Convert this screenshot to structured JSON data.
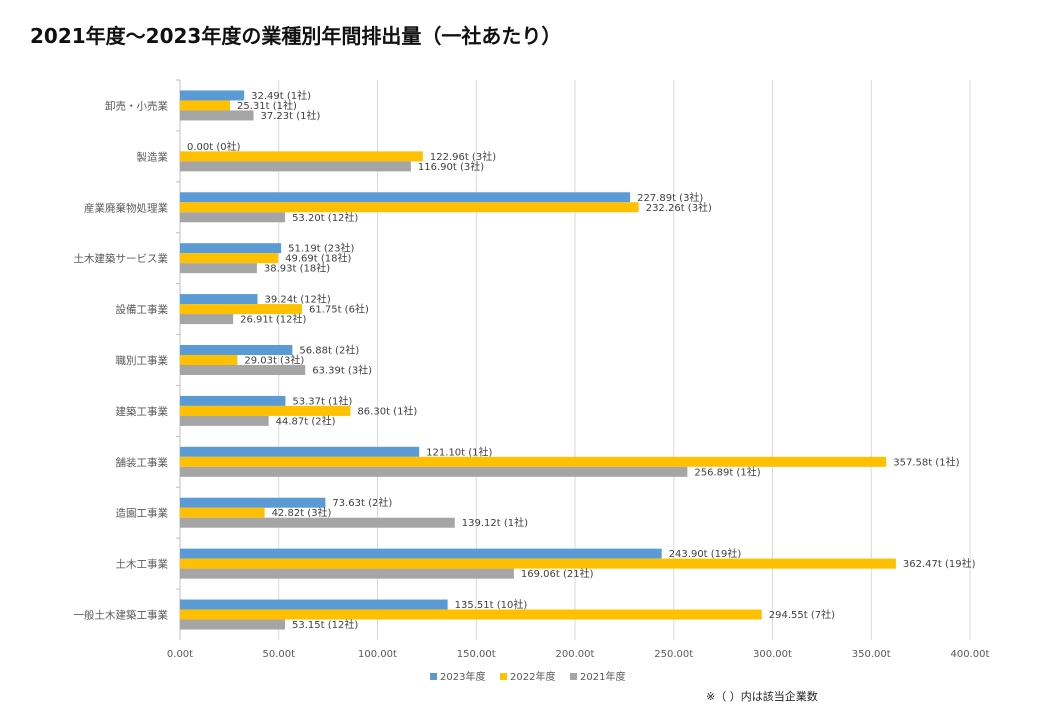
{
  "chart_data": {
    "type": "bar",
    "orientation": "horizontal",
    "title": "2021年度～2023年度の業種別年間排出量（一社あたり）",
    "categories": [
      "卸売・小売業",
      "製造業",
      "産業廃棄物処理業",
      "土木建築サービス業",
      "設備工事業",
      "職別工事業",
      "建築工事業",
      "舗装工事業",
      "造園工事業",
      "土木工事業",
      "一般土木建築工事業"
    ],
    "series": [
      {
        "name": "2023年度",
        "color": "#5b9bd5",
        "values": [
          32.49,
          0.0,
          227.89,
          51.19,
          39.24,
          56.88,
          53.37,
          121.1,
          73.63,
          243.9,
          135.51
        ],
        "labels": [
          "32.49t (1社)",
          "0.00t (0社)",
          "227.89t (3社)",
          "51.19t (23社)",
          "39.24t (12社)",
          "56.88t (2社)",
          "53.37t (1社)",
          "121.10t (1社)",
          "73.63t (2社)",
          "243.90t (19社)",
          "135.51t (10社)"
        ]
      },
      {
        "name": "2022年度",
        "color": "#ffc000",
        "values": [
          25.31,
          122.96,
          232.26,
          49.69,
          61.75,
          29.03,
          86.3,
          357.58,
          42.82,
          362.47,
          294.55
        ],
        "labels": [
          "25.31t (1社)",
          "122.96t (3社)",
          "232.26t (3社)",
          "49.69t (18社)",
          "61.75t (6社)",
          "29.03t (3社)",
          "86.30t (1社)",
          "357.58t (1社)",
          "42.82t (3社)",
          "362.47t (19社)",
          "294.55t (7社)"
        ]
      },
      {
        "name": "2021年度",
        "color": "#a5a5a5",
        "values": [
          37.23,
          116.9,
          53.2,
          38.93,
          26.91,
          63.39,
          44.87,
          256.89,
          139.12,
          169.06,
          53.15
        ],
        "labels": [
          "37.23t (1社)",
          "116.90t (3社)",
          "53.20t (12社)",
          "38.93t (18社)",
          "26.91t (12社)",
          "63.39t (3社)",
          "44.87t (2社)",
          "256.89t (1社)",
          "139.12t (1社)",
          "169.06t (21社)",
          "53.15t (12社)"
        ]
      }
    ],
    "xlim": [
      0,
      400
    ],
    "x_ticks": [
      "0.00t",
      "50.00t",
      "100.00t",
      "150.00t",
      "200.00t",
      "250.00t",
      "300.00t",
      "350.00t",
      "400.00t"
    ],
    "grid": true,
    "legend_position": "bottom",
    "footnote": "※（ ）内は該当企業数"
  }
}
